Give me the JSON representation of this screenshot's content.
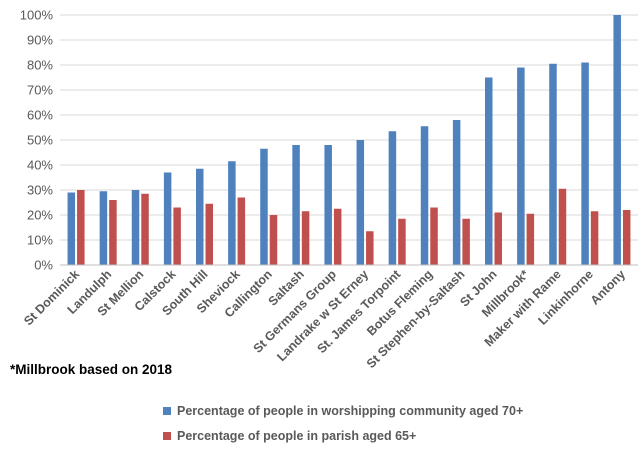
{
  "chart_data": {
    "type": "bar",
    "categories": [
      "St Dominick",
      "Landulph",
      "St Mellion",
      "Calstock",
      "South Hill",
      "Sheviock",
      "Callington",
      "Saltash",
      "St Germans Group",
      "Landrake w St Erney",
      "St. James Torpoint",
      "Botus Fleming",
      "St Stephen-by-Saltash",
      "St John",
      "Millbrook*",
      "Maker with Rame",
      "Linkinhorne",
      "Antony"
    ],
    "series": [
      {
        "name": "Percentage of people in worshipping community aged 70+",
        "color": "#4f81bd",
        "values": [
          29,
          29.5,
          30,
          37,
          38.5,
          41.5,
          46.5,
          48,
          48,
          50,
          53.5,
          55.5,
          58,
          75,
          79,
          80.5,
          81,
          100
        ]
      },
      {
        "name": "Percentage of people in parish aged 65+",
        "color": "#c0504d",
        "values": [
          30,
          26,
          28.5,
          23,
          24.5,
          27,
          20,
          21.5,
          22.5,
          13.5,
          18.5,
          23,
          18.5,
          21,
          20.5,
          30.5,
          21.5,
          22
        ]
      }
    ],
    "yticks": [
      "0%",
      "10%",
      "20%",
      "30%",
      "40%",
      "50%",
      "60%",
      "70%",
      "80%",
      "90%",
      "100%"
    ],
    "ylim": [
      0,
      100
    ],
    "grid": true,
    "legend_position": "bottom",
    "note": "*Millbrook based on 2018"
  }
}
